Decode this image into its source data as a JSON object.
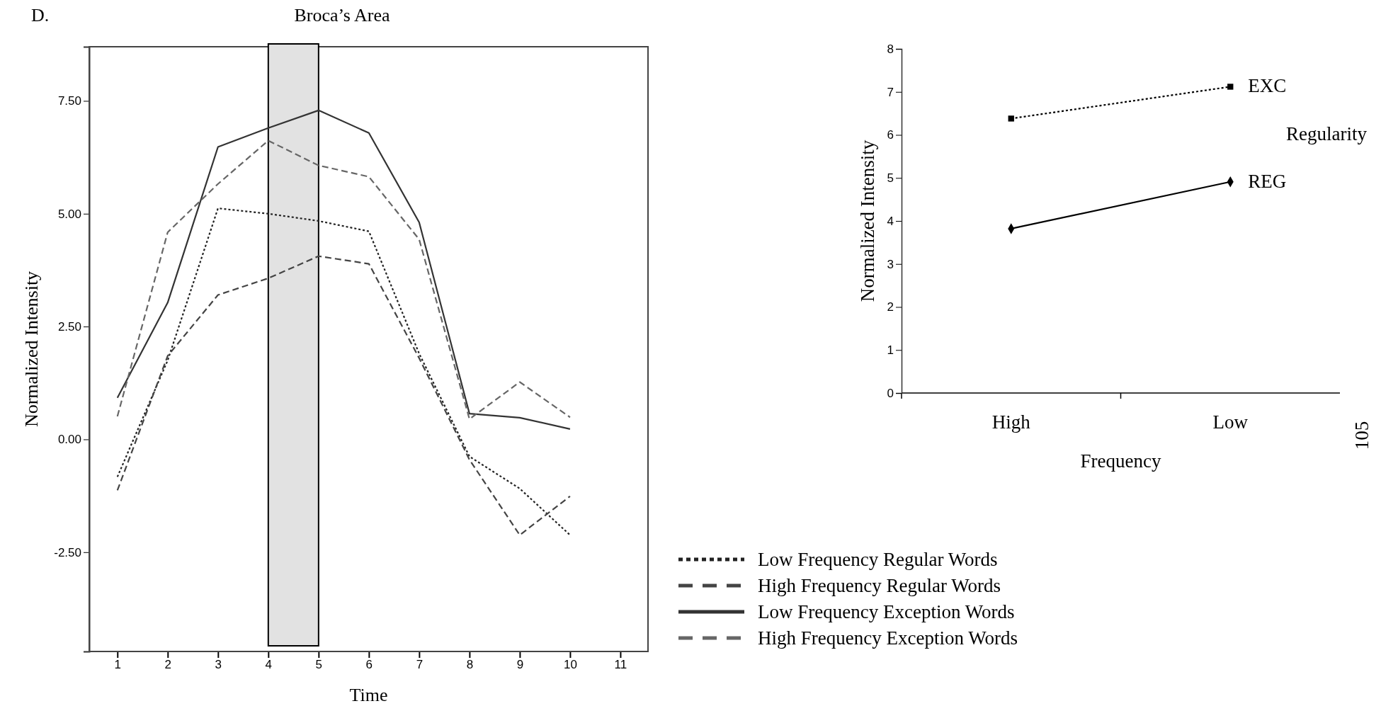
{
  "chart_data": [
    {
      "type": "line",
      "title": "Broca’s Area",
      "xlabel": "Time",
      "ylabel": "Normalized Intensity",
      "annotations": [
        "D."
      ],
      "x": [
        1,
        2,
        3,
        4,
        5,
        6,
        7,
        8,
        9,
        10
      ],
      "xlim": [
        0.44,
        11.55
      ],
      "xticks": [
        1,
        2,
        3,
        4,
        5,
        6,
        7,
        8,
        9,
        10,
        11
      ],
      "ylim": [
        -4.7,
        8.7
      ],
      "yticks": [
        {
          "value": -2.5,
          "label": "-2.50"
        },
        {
          "value": 0,
          "label": "0.00"
        },
        {
          "value": 2.5,
          "label": "2.50"
        },
        {
          "value": 5,
          "label": "5.00"
        },
        {
          "value": 7.5,
          "label": "7.50"
        }
      ],
      "grid": false,
      "legend": "bottom right",
      "marker": "none",
      "bands": [
        {
          "axis": "x",
          "from": 4,
          "to": 5,
          "color": "#e2e2e2"
        }
      ],
      "series": [
        {
          "name": "Low Frequency Regular Words",
          "color": "#222222",
          "line_style": "dotted",
          "values": [
            -0.83,
            1.75,
            5.12,
            5.0,
            4.84,
            4.61,
            1.9,
            -0.38,
            -1.09,
            -2.12
          ]
        },
        {
          "name": "High Frequency Regular Words",
          "color": "#444444",
          "line_style": "dashed",
          "values": [
            -1.13,
            1.85,
            3.2,
            3.57,
            4.06,
            3.89,
            1.8,
            -0.45,
            -2.12,
            -1.26
          ]
        },
        {
          "name": "Low Frequency Exception Words",
          "color": "#333333",
          "line_style": "solid",
          "values": [
            0.92,
            3.03,
            6.48,
            6.9,
            7.29,
            6.79,
            4.81,
            0.57,
            0.48,
            0.23
          ]
        },
        {
          "name": "High Frequency Exception Words",
          "color": "#666666",
          "line_style": "dashed",
          "values": [
            0.51,
            4.59,
            5.66,
            6.62,
            6.07,
            5.82,
            4.43,
            0.45,
            1.27,
            0.49
          ]
        }
      ]
    },
    {
      "type": "line",
      "xlabel": "Frequency",
      "ylabel": "Normalized Intensity",
      "legend_title": "Regularity",
      "annotations": [
        "105"
      ],
      "categories": [
        "High",
        "Low"
      ],
      "ylim": [
        0,
        8
      ],
      "yticks": [
        0,
        1,
        2,
        3,
        4,
        5,
        6,
        7,
        8
      ],
      "grid": false,
      "legend": false,
      "series": [
        {
          "name": "EXC",
          "color": "#000000",
          "line_style": "dotted",
          "marker": "square",
          "values": [
            6.38,
            7.12
          ]
        },
        {
          "name": "REG",
          "color": "#000000",
          "line_style": "solid",
          "marker": "diamond",
          "values": [
            3.82,
            4.91
          ]
        }
      ]
    }
  ]
}
